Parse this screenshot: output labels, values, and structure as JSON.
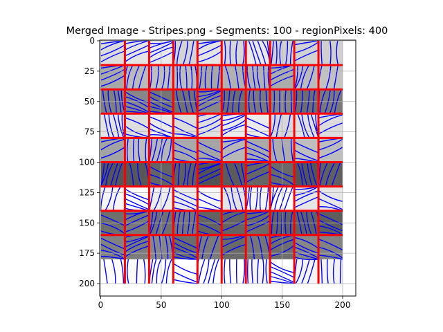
{
  "chart_data": {
    "type": "heatmap",
    "title": "Merged Image - Stripes.png - Segments: 100 - regionPixels: 400",
    "xlabel": "",
    "ylabel": "",
    "xlim": [
      0,
      200
    ],
    "ylim": [
      200,
      0
    ],
    "x_ticks": [
      0,
      50,
      100,
      150,
      200
    ],
    "y_ticks": [
      0,
      25,
      50,
      75,
      100,
      125,
      150,
      175,
      200
    ],
    "grid": true,
    "grid_rows": 10,
    "grid_cols": 10,
    "row_intensity": [
      "#dcdcdc",
      "#b4b4b4",
      "#7a7a7a",
      "#e6e6e6",
      "#b0b0b0",
      "#626262",
      "#f2f2f2",
      "#6a6a6a",
      "#787878",
      "#ffffff"
    ],
    "cell_shade_variation": true,
    "segment_boundary_color": "#ff0000",
    "stripe_line_color": "#0000ff"
  }
}
